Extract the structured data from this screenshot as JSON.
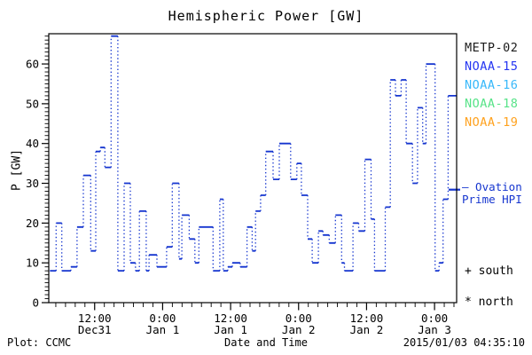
{
  "title": "Hemispheric Power [GW]",
  "y_axis_title": "P [GW]",
  "x_axis_title": "Date and Time",
  "footer": {
    "plot_credit": "Plot: CCMC",
    "generated": "2015/01/03 04:35:10"
  },
  "legend": {
    "satellites": [
      {
        "label": "METP-02",
        "color": "#1c1c1c"
      },
      {
        "label": "NOAA-15",
        "color": "#2536f2"
      },
      {
        "label": "NOAA-16",
        "color": "#38b8fa"
      },
      {
        "label": "NOAA-18",
        "color": "#57e388"
      },
      {
        "label": "NOAA-19",
        "color": "#ffa21f"
      }
    ],
    "model_line1": "— Ovation",
    "model_line2": "Prime HPI",
    "model_color": "#1535cf",
    "south_label": "+ south",
    "north_label": "* north"
  },
  "chart_data": {
    "type": "line",
    "line_style": "step",
    "title": "Hemispheric Power [GW]",
    "xlabel": "Date and Time",
    "ylabel": "P [GW]",
    "unit": "GW",
    "ylim": [
      0,
      67.6
    ],
    "y_major_ticks": [
      0,
      10,
      20,
      30,
      40,
      50,
      60
    ],
    "y_minor_step": 1,
    "x_total_hours": 72,
    "x_minor_per_major": 7,
    "x_ticks": [
      {
        "t": 8.1,
        "time": "12:00",
        "date": "Dec31"
      },
      {
        "t": 20.1,
        "time": "0:00",
        "date": "Jan 1"
      },
      {
        "t": 32.1,
        "time": "12:00",
        "date": "Jan 1"
      },
      {
        "t": 44.1,
        "time": "0:00",
        "date": "Jan 2"
      },
      {
        "t": 56.1,
        "time": "12:00",
        "date": "Jan 2"
      },
      {
        "t": 68.1,
        "time": "0:00",
        "date": "Jan 3"
      }
    ],
    "line_color": "#1535cf",
    "legend_pointer_gw": 28.4,
    "t_end": 72,
    "steps": [
      [
        0.2,
        8
      ],
      [
        1.3,
        20
      ],
      [
        2.3,
        8
      ],
      [
        3.9,
        9
      ],
      [
        5.0,
        19
      ],
      [
        6.1,
        32
      ],
      [
        7.4,
        13
      ],
      [
        8.3,
        38
      ],
      [
        9.1,
        39
      ],
      [
        9.9,
        34
      ],
      [
        11.0,
        67
      ],
      [
        12.2,
        8
      ],
      [
        13.3,
        30
      ],
      [
        14.4,
        10
      ],
      [
        15.3,
        8
      ],
      [
        16.0,
        23
      ],
      [
        17.2,
        8
      ],
      [
        17.7,
        12
      ],
      [
        19.1,
        9
      ],
      [
        20.8,
        14
      ],
      [
        21.8,
        30
      ],
      [
        23.0,
        11
      ],
      [
        23.5,
        22
      ],
      [
        24.8,
        16
      ],
      [
        25.8,
        10
      ],
      [
        26.5,
        19
      ],
      [
        29.0,
        8
      ],
      [
        30.2,
        26
      ],
      [
        30.8,
        8
      ],
      [
        31.6,
        9
      ],
      [
        32.4,
        10
      ],
      [
        33.8,
        9
      ],
      [
        35.0,
        19
      ],
      [
        35.9,
        13
      ],
      [
        36.5,
        23
      ],
      [
        37.4,
        27
      ],
      [
        38.3,
        38
      ],
      [
        39.6,
        31
      ],
      [
        40.7,
        40
      ],
      [
        42.7,
        31
      ],
      [
        43.8,
        35
      ],
      [
        44.6,
        27
      ],
      [
        45.7,
        16
      ],
      [
        46.5,
        10
      ],
      [
        47.6,
        18
      ],
      [
        48.4,
        17
      ],
      [
        49.5,
        15
      ],
      [
        50.6,
        22
      ],
      [
        51.7,
        10
      ],
      [
        52.2,
        8
      ],
      [
        53.7,
        20
      ],
      [
        54.7,
        18
      ],
      [
        55.8,
        36
      ],
      [
        56.9,
        21
      ],
      [
        57.5,
        8
      ],
      [
        59.4,
        24
      ],
      [
        60.3,
        56
      ],
      [
        61.2,
        52
      ],
      [
        62.2,
        56
      ],
      [
        63.1,
        40
      ],
      [
        64.2,
        30
      ],
      [
        65.1,
        49
      ],
      [
        66.0,
        40
      ],
      [
        66.6,
        60
      ],
      [
        68.2,
        8
      ],
      [
        68.9,
        10
      ],
      [
        69.6,
        26
      ],
      [
        70.5,
        52
      ]
    ]
  }
}
